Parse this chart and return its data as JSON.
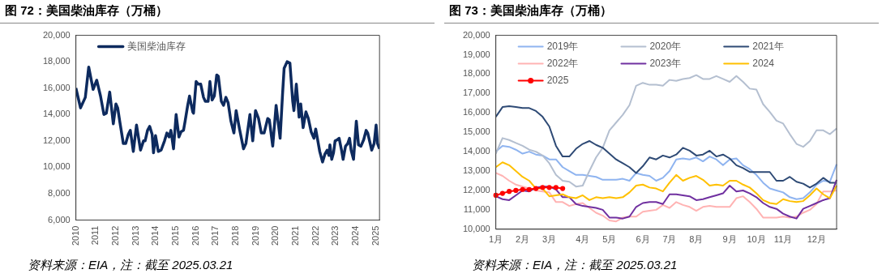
{
  "chart_data": [
    {
      "type": "line",
      "title": "图 72：美国柴油库存（万桶）",
      "annotations": [
        "资料来源：EIA，注：截至 2025.03.21"
      ],
      "legend": "top left",
      "x": [
        2010.0,
        2010.23,
        2010.47,
        2010.64,
        2010.86,
        2011.04,
        2011.23,
        2011.4,
        2011.52,
        2011.69,
        2011.87,
        2012.0,
        2012.09,
        2012.19,
        2012.37,
        2012.49,
        2012.62,
        2012.72,
        2012.87,
        2013.03,
        2013.23,
        2013.38,
        2013.46,
        2013.58,
        2013.69,
        2013.81,
        2013.88,
        2013.98,
        2014.12,
        2014.26,
        2014.43,
        2014.55,
        2014.66,
        2014.75,
        2014.88,
        2015.01,
        2015.15,
        2015.26,
        2015.38,
        2015.46,
        2015.59,
        2015.68,
        2015.84,
        2015.88,
        2016.01,
        2016.12,
        2016.24,
        2016.38,
        2016.47,
        2016.61,
        2016.7,
        2016.81,
        2016.92,
        2017.04,
        2017.12,
        2017.27,
        2017.38,
        2017.5,
        2017.61,
        2017.75,
        2017.9,
        2018.01,
        2018.18,
        2018.38,
        2018.5,
        2018.7,
        2018.84,
        2018.98,
        2019.13,
        2019.27,
        2019.41,
        2019.59,
        2019.67,
        2019.84,
        2020.01,
        2020.21,
        2020.33,
        2020.41,
        2020.56,
        2020.7,
        2020.84,
        2020.9,
        2021.02,
        2021.16,
        2021.24,
        2021.36,
        2021.5,
        2021.62,
        2021.76,
        2021.9,
        2021.99,
        2022.19,
        2022.33,
        2022.45,
        2022.56,
        2022.65,
        2022.7,
        2022.79,
        2022.88,
        2022.96,
        2023.08,
        2023.16,
        2023.28,
        2023.36,
        2023.48,
        2023.59,
        2023.68,
        2023.76,
        2023.88,
        2024.02,
        2024.13,
        2024.25,
        2024.39,
        2024.51,
        2024.59,
        2024.79,
        2024.91,
        2025.01,
        2025.08,
        2025.18
      ],
      "series": [
        {
          "name": "美国柴油库存",
          "color": "#0d2a5e",
          "values": [
            16000,
            14500,
            15300,
            17600,
            15900,
            16600,
            15400,
            14000,
            14100,
            15700,
            13300,
            14800,
            14500,
            13500,
            11800,
            11800,
            12500,
            12800,
            11200,
            13200,
            11300,
            12000,
            12000,
            12800,
            13100,
            12500,
            11100,
            12400,
            11200,
            11300,
            12000,
            12600,
            12300,
            12800,
            11400,
            14000,
            12300,
            12700,
            12800,
            13500,
            14700,
            15400,
            14200,
            14100,
            16500,
            16300,
            16300,
            15300,
            15000,
            15000,
            16500,
            15100,
            15400,
            17000,
            16900,
            15000,
            14700,
            15300,
            14900,
            13500,
            12600,
            14300,
            12900,
            11400,
            11800,
            14000,
            12000,
            14300,
            13700,
            12600,
            12600,
            13700,
            13600,
            11600,
            14700,
            12200,
            15500,
            17500,
            18000,
            17900,
            15000,
            14300,
            16300,
            13800,
            14800,
            13000,
            14200,
            13700,
            12700,
            12200,
            12900,
            11200,
            10400,
            11000,
            11300,
            10900,
            11700,
            10600,
            11100,
            12000,
            12100,
            12200,
            11300,
            10600,
            11600,
            11800,
            12200,
            11300,
            10600,
            13500,
            11700,
            11600,
            12100,
            12800,
            12600,
            11300,
            11800,
            13200,
            11800,
            11400
          ]
        }
      ],
      "xlim": [
        2010,
        2025.18
      ],
      "xticks": [
        2010,
        2011,
        2012,
        2013,
        2014,
        2015,
        2016,
        2017,
        2018,
        2019,
        2020,
        2021,
        2022,
        2023,
        2024,
        2025
      ],
      "ylim": [
        6000,
        20000
      ],
      "yticks": [
        {
          "value": 6000,
          "label": "6,000"
        },
        {
          "value": 8000,
          "label": "8,000"
        },
        {
          "value": 10000,
          "label": "10,000"
        },
        {
          "value": 12000,
          "label": "12,000"
        },
        {
          "value": 14000,
          "label": "14,000"
        },
        {
          "value": 16000,
          "label": "16,000"
        },
        {
          "value": 18000,
          "label": "18,000"
        },
        {
          "value": 20000,
          "label": "20,000"
        }
      ]
    },
    {
      "type": "line",
      "title": "图 73：美国柴油库存（万桶）",
      "annotations": [
        "资料来源：EIA，注：截至 2025.03.21"
      ],
      "legend": "top left",
      "categories": [
        "1月",
        null,
        null,
        null,
        "2月",
        null,
        null,
        null,
        "3月",
        null,
        null,
        null,
        null,
        "4月",
        null,
        null,
        null,
        "5月",
        null,
        null,
        null,
        null,
        "6月",
        null,
        null,
        null,
        "7月",
        null,
        null,
        null,
        "8月",
        null,
        null,
        null,
        null,
        "9月",
        null,
        null,
        null,
        "10月",
        null,
        null,
        null,
        "11月",
        null,
        null,
        null,
        null,
        "12月",
        null,
        null,
        null
      ],
      "series": [
        {
          "name": "2019年",
          "color": "#8fb4f0",
          "values": [
            14000,
            14300,
            14250,
            14100,
            13900,
            14000,
            13850,
            13800,
            13600,
            13600,
            13200,
            13000,
            12800,
            12800,
            12750,
            12700,
            12550,
            12550,
            12550,
            12600,
            12500,
            12900,
            12800,
            12750,
            12500,
            12650,
            13000,
            13600,
            13650,
            13600,
            13700,
            13500,
            13750,
            13600,
            13300,
            13600,
            13650,
            13300,
            13100,
            12800,
            12400,
            12100,
            12000,
            11900,
            11650,
            11550,
            11600,
            11900,
            12300,
            12500,
            12450,
            13350
          ]
        },
        {
          "name": "2020年",
          "color": "#b4bfd0",
          "values": [
            13900,
            14700,
            14600,
            14450,
            14300,
            14100,
            14000,
            13800,
            13400,
            12800,
            12500,
            12450,
            12200,
            12250,
            13000,
            13700,
            14200,
            15100,
            15500,
            15900,
            16400,
            17400,
            17550,
            17450,
            17450,
            17400,
            17700,
            17650,
            17750,
            17800,
            17950,
            17750,
            17750,
            17900,
            17750,
            17600,
            17900,
            17600,
            17250,
            17200,
            16450,
            16050,
            15600,
            15450,
            14900,
            14400,
            14250,
            14550,
            15100,
            15100,
            14900,
            15200
          ]
        },
        {
          "name": "2021年",
          "color": "#2e4a75",
          "values": [
            15800,
            16300,
            16350,
            16300,
            16250,
            16250,
            16100,
            15800,
            15300,
            14300,
            13750,
            13750,
            14150,
            14400,
            14550,
            14350,
            14200,
            13900,
            13600,
            13400,
            13200,
            12900,
            13250,
            13700,
            13600,
            13800,
            13700,
            13850,
            14200,
            14050,
            13800,
            13850,
            14050,
            13750,
            13850,
            13650,
            13300,
            13150,
            12950,
            12950,
            12950,
            12950,
            12500,
            12500,
            12700,
            12450,
            12350,
            12150,
            12350,
            12650,
            12400,
            12400
          ]
        },
        {
          "name": "2022年",
          "color": "#ffb3b3",
          "values": [
            12900,
            12750,
            12500,
            12300,
            12200,
            12100,
            12000,
            11950,
            11900,
            11400,
            11400,
            11200,
            11300,
            11350,
            11100,
            10850,
            10700,
            10450,
            10400,
            10600,
            10650,
            10650,
            10900,
            10950,
            11000,
            11250,
            11100,
            11400,
            11250,
            11150,
            10950,
            11150,
            11200,
            11150,
            11150,
            11150,
            11600,
            11700,
            11400,
            11050,
            10600,
            10600,
            10600,
            10650,
            10600,
            10650,
            10850,
            11000,
            11300,
            11950,
            11950,
            12000
          ]
        },
        {
          "name": "2023年",
          "color": "#7030a0",
          "values": [
            11700,
            11550,
            11500,
            11750,
            12000,
            11950,
            12150,
            12200,
            12200,
            12050,
            11650,
            11650,
            11300,
            11200,
            11150,
            11100,
            11000,
            10600,
            10600,
            10550,
            10650,
            11150,
            11350,
            11400,
            11400,
            11300,
            11800,
            11800,
            11750,
            11700,
            11500,
            11550,
            11650,
            11750,
            11850,
            12250,
            11950,
            12000,
            11850,
            11650,
            11350,
            11150,
            11050,
            10800,
            10650,
            10550,
            11050,
            11200,
            11350,
            11500,
            11600,
            12550
          ]
        },
        {
          "name": "2024",
          "color": "#ffc000",
          "values": [
            13200,
            13450,
            13300,
            13000,
            12700,
            12500,
            12100,
            12100,
            11700,
            11750,
            11800,
            11650,
            11600,
            11750,
            11500,
            11650,
            11600,
            11650,
            11600,
            11650,
            11900,
            12250,
            12300,
            12150,
            12100,
            11950,
            12400,
            12800,
            12500,
            12650,
            12750,
            12550,
            12250,
            12300,
            12250,
            12500,
            12500,
            12300,
            12150,
            11850,
            11500,
            11350,
            11300,
            11550,
            11450,
            11400,
            11450,
            11750,
            12100,
            11800,
            11600,
            12250
          ]
        },
        {
          "name": "2025",
          "color": "#ff0000",
          "marker": "circle",
          "values": [
            11750,
            11850,
            11950,
            12000,
            12050,
            12050,
            12100,
            12150,
            12150,
            12150,
            12100,
            null,
            null,
            null,
            null,
            null,
            null,
            null,
            null,
            null,
            null,
            null,
            null,
            null,
            null,
            null,
            null,
            null,
            null,
            null,
            null,
            null,
            null,
            null,
            null,
            null,
            null,
            null,
            null,
            null,
            null,
            null,
            null,
            null,
            null,
            null,
            null,
            null,
            null,
            null,
            null,
            null
          ]
        }
      ],
      "ylim": [
        10000,
        20000
      ],
      "yticks": [
        {
          "value": 10000,
          "label": "10,000"
        },
        {
          "value": 11000,
          "label": "11,000"
        },
        {
          "value": 12000,
          "label": "12,000"
        },
        {
          "value": 13000,
          "label": "13,000"
        },
        {
          "value": 14000,
          "label": "14,000"
        },
        {
          "value": 15000,
          "label": "15,000"
        },
        {
          "value": 16000,
          "label": "16,000"
        },
        {
          "value": 17000,
          "label": "17,000"
        },
        {
          "value": 18000,
          "label": "18,000"
        },
        {
          "value": 19000,
          "label": "19,000"
        },
        {
          "value": 20000,
          "label": "20,000"
        }
      ]
    }
  ]
}
